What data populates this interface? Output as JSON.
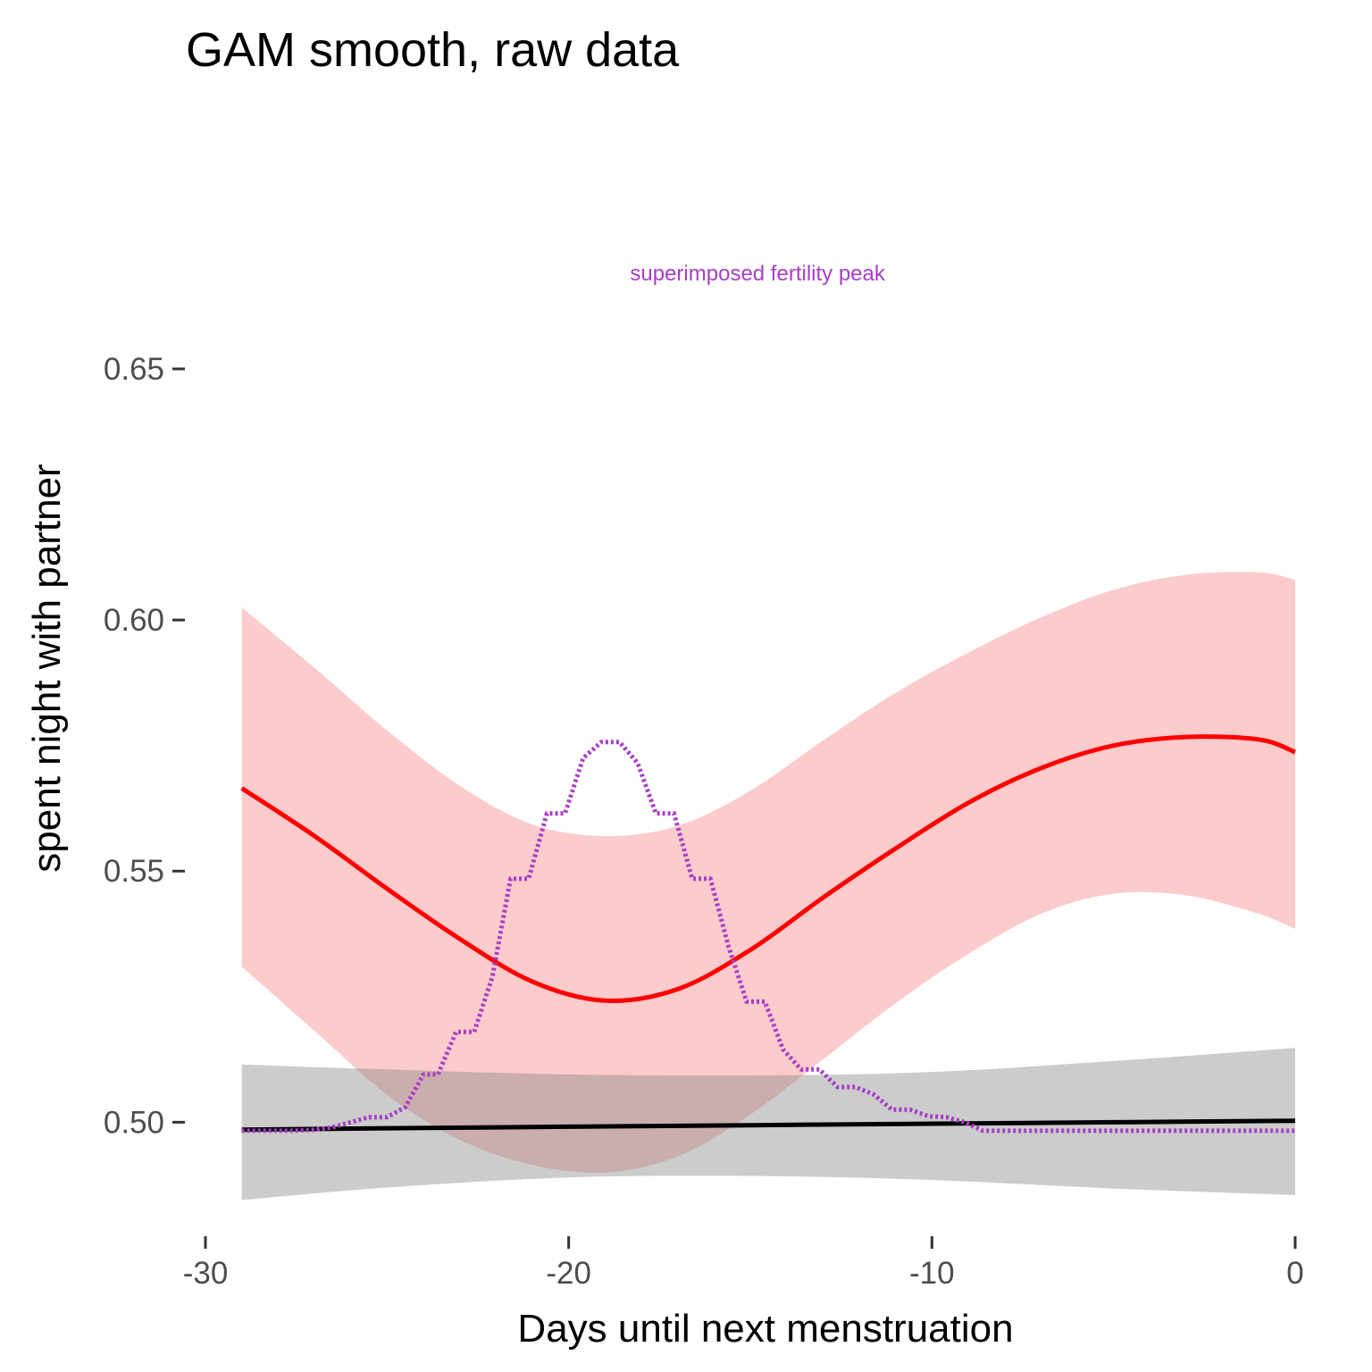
{
  "colors": {
    "gam": "#ff0000",
    "gam_band": "#fccbcb",
    "linear": "#000000",
    "linear_band": "#cccccc",
    "fertility": "#a83ec7",
    "tick_label": "#4d4d4d"
  },
  "chart_data": {
    "type": "line",
    "title": "GAM smooth, raw data",
    "xlabel": "Days until next menstruation",
    "ylabel": "spent night with partner",
    "xlim": [
      -30,
      0
    ],
    "ylim": [
      0.4805,
      0.6765
    ],
    "x_ticks": [
      -30,
      -20,
      -10,
      0
    ],
    "x_tick_labels": [
      "-30",
      "-20",
      "-10",
      "0"
    ],
    "y_ticks": [
      0.5,
      0.55,
      0.6,
      0.65
    ],
    "y_tick_labels": [
      "0.50",
      "0.55",
      "0.60",
      "0.65"
    ],
    "grid": false,
    "annotations": [
      {
        "text": "superimposed fertility peak",
        "x": -14.8,
        "y": 0.6676,
        "color": "#a83ec7"
      }
    ],
    "series": [
      {
        "style": "solid",
        "color": "#ff0000",
        "band_color": "#fccbcb",
        "band_opacity": 1,
        "x": [
          -29,
          -27,
          -25,
          -23,
          -21,
          -19,
          -17,
          -15,
          -13,
          -11,
          -9,
          -7,
          -5,
          -3,
          -1,
          0
        ],
        "y": [
          0.5665,
          0.557,
          0.5465,
          0.5365,
          0.528,
          0.5242,
          0.5265,
          0.5343,
          0.5447,
          0.5545,
          0.5636,
          0.5705,
          0.575,
          0.5767,
          0.5762,
          0.5737
        ],
        "lower": [
          0.531,
          0.5182,
          0.5055,
          0.4965,
          0.4915,
          0.49,
          0.4932,
          0.5015,
          0.5125,
          0.5237,
          0.5335,
          0.5415,
          0.5455,
          0.5452,
          0.5415,
          0.5385
        ],
        "upper": [
          0.6025,
          0.5905,
          0.578,
          0.567,
          0.5593,
          0.557,
          0.559,
          0.566,
          0.576,
          0.5855,
          0.5935,
          0.6005,
          0.606,
          0.609,
          0.6095,
          0.608
        ]
      },
      {
        "style": "solid",
        "color": "#000000",
        "band_color": "#7f7f7f",
        "band_opacity": 0.4,
        "x": [
          -29,
          -25,
          -20,
          -15,
          -10,
          -5,
          0
        ],
        "y": [
          0.4985,
          0.4988,
          0.4991,
          0.4994,
          0.4997,
          0.5,
          0.5003
        ],
        "lower": [
          0.4845,
          0.487,
          0.489,
          0.4893,
          0.4885,
          0.4868,
          0.4855
        ],
        "upper": [
          0.5115,
          0.5105,
          0.5095,
          0.5093,
          0.51,
          0.5122,
          0.5148
        ]
      },
      {
        "style": "dotted",
        "color": "#a83ec7",
        "x": [
          -29,
          -27.6,
          -27,
          -26.5,
          -26,
          -25.5,
          -25,
          -24.5,
          -24,
          -23.6,
          -23.1,
          -22.6,
          -22.1,
          -21.6,
          -21.1,
          -20.6,
          -20.1,
          -19.6,
          -19.1,
          -18.6,
          -18.1,
          -17.6,
          -17.1,
          -16.6,
          -16.1,
          -15.6,
          -15.1,
          -14.6,
          -14.1,
          -13.6,
          -13.1,
          -12.6,
          -12.1,
          -11.6,
          -11.1,
          -10.6,
          -10.1,
          -9.6,
          -9.1,
          -8.6,
          -8.1,
          -7.6,
          -7.1,
          -6.6,
          -6.1,
          -5.6,
          -5.1,
          -4.6,
          -4.1,
          0
        ],
        "y": [
          0.4983,
          0.4983,
          0.4985,
          0.499,
          0.5,
          0.501,
          0.501,
          0.503,
          0.5095,
          0.5095,
          0.518,
          0.518,
          0.529,
          0.5485,
          0.5485,
          0.5615,
          0.5615,
          0.5725,
          0.5757,
          0.5757,
          0.5715,
          0.5615,
          0.5615,
          0.5485,
          0.5485,
          0.535,
          0.524,
          0.524,
          0.5145,
          0.5105,
          0.5105,
          0.507,
          0.507,
          0.5055,
          0.5025,
          0.5025,
          0.5012,
          0.501,
          0.5,
          0.4983,
          0.4983,
          0.4983,
          0.4983,
          0.4983,
          0.4983,
          0.4983,
          0.4983,
          0.4983,
          0.4983,
          0.4983
        ]
      }
    ]
  }
}
